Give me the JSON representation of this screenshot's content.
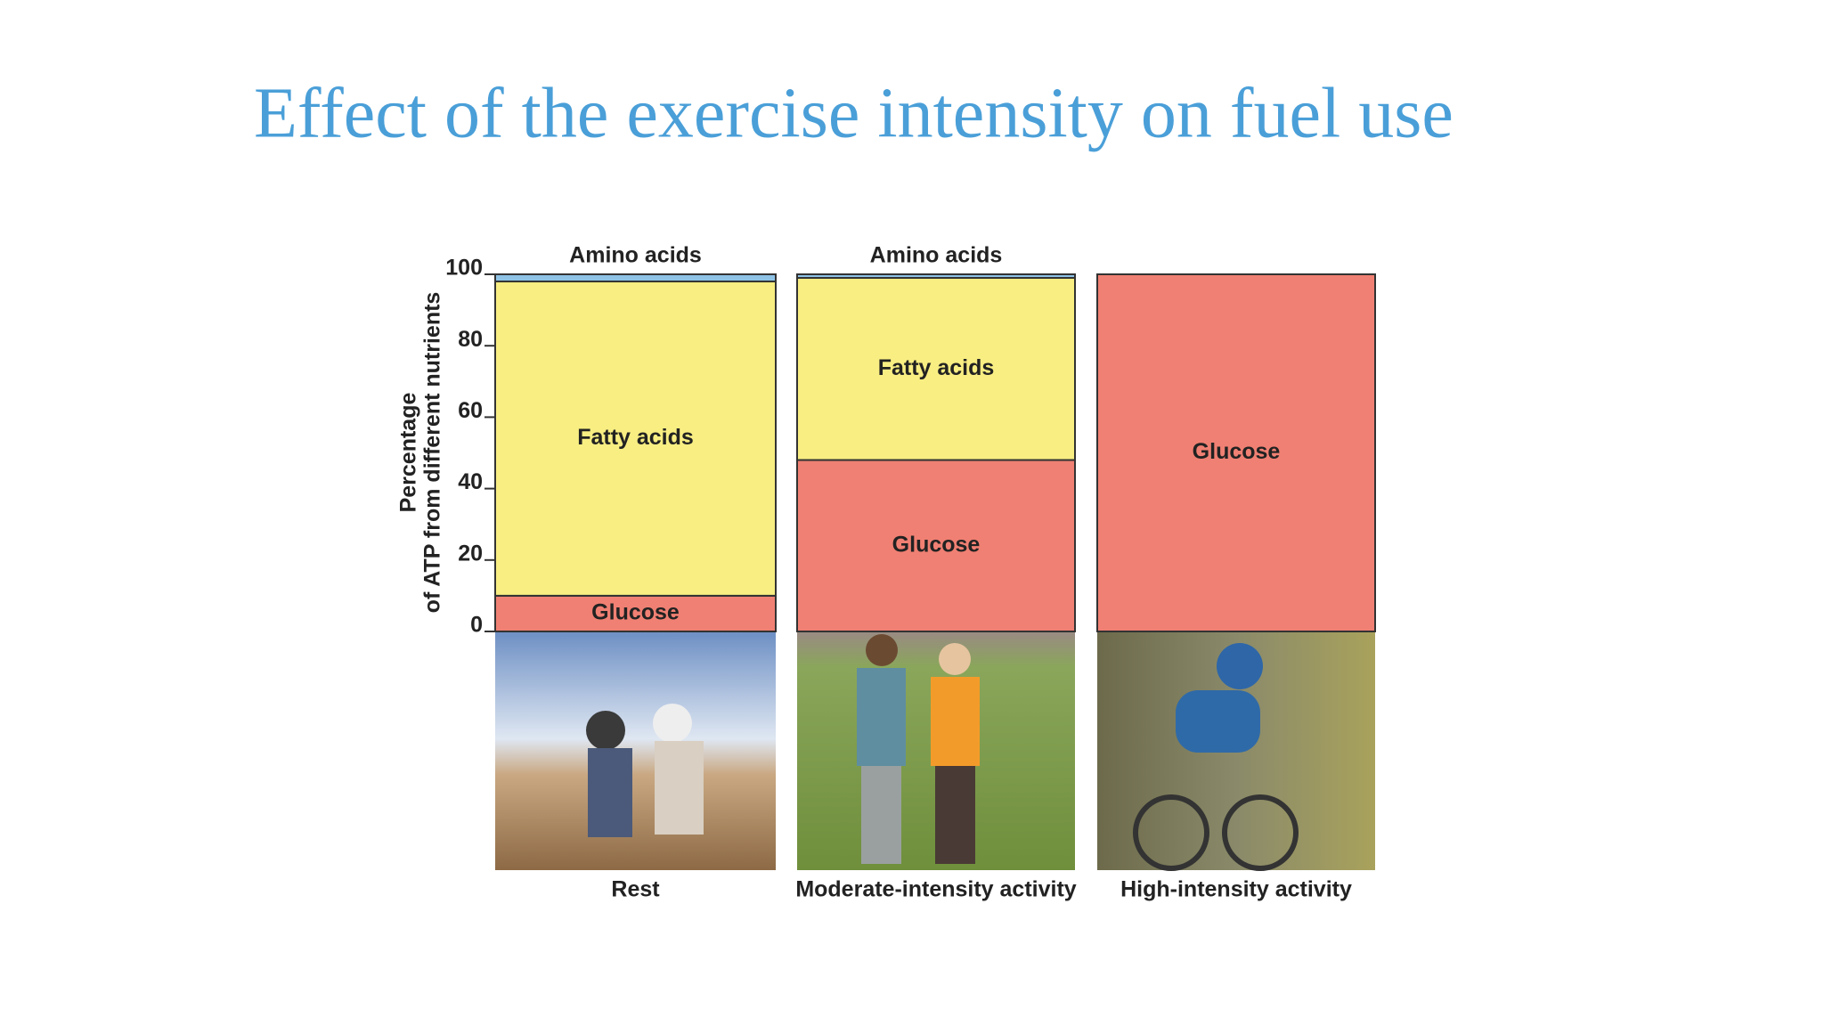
{
  "chart_data": {
    "type": "stacked_bar",
    "title": "Effect of the exercise intensity on fuel use",
    "y_label": [
      "Percentage",
      "of ATP from different nutrients"
    ],
    "categories": [
      "Rest",
      "Moderate-intensity activity",
      "High-intensity activity"
    ],
    "series": [
      {
        "name": "Glucose",
        "color": "#f08073",
        "values": [
          10,
          48,
          100
        ]
      },
      {
        "name": "Fatty acids",
        "color": "#f8ee82",
        "values": [
          88,
          51,
          0
        ]
      },
      {
        "name": "Amino acids",
        "color": "#8fc3e6",
        "values": [
          2,
          1,
          0
        ]
      }
    ],
    "ylim": [
      0,
      100
    ],
    "yticks": [
      0,
      20,
      40,
      60,
      80,
      100
    ],
    "yminor": [
      10,
      30,
      50,
      70,
      90
    ]
  }
}
